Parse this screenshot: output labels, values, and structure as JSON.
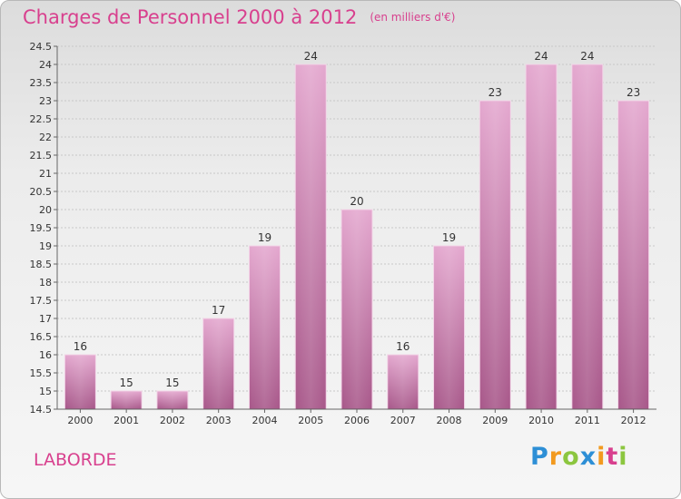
{
  "title_main": "Charges de Personnel 2000 à 2012",
  "title_sub": "(en milliers d'€)",
  "commune": "LABORDE",
  "logo": "Proxiti",
  "chart_data": {
    "type": "bar",
    "title": "Charges de Personnel 2000 à 2012",
    "subtitle": "(en milliers d'€)",
    "categories": [
      "2000",
      "2001",
      "2002",
      "2003",
      "2004",
      "2005",
      "2006",
      "2007",
      "2008",
      "2009",
      "2010",
      "2011",
      "2012"
    ],
    "values": [
      16,
      15,
      15,
      17,
      19,
      24,
      20,
      16,
      19,
      23,
      24,
      24,
      23
    ],
    "ylim": [
      14.5,
      24.5
    ],
    "ytick_step": 0.5,
    "grid": true,
    "bar_color": "#d88db8",
    "xlabel": "",
    "ylabel": ""
  }
}
